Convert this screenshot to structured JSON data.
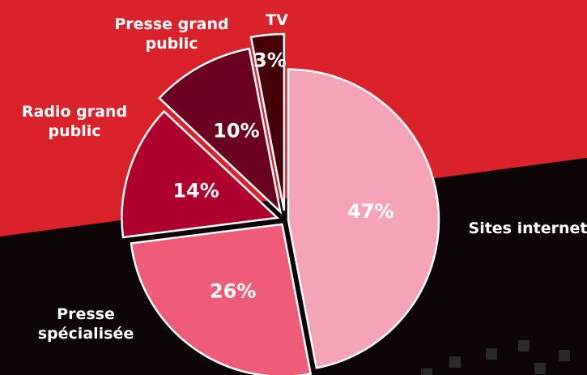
{
  "chart_data": {
    "type": "pie",
    "categories": [
      "Sites internet",
      "Presse spécialisée",
      "Radio grand public",
      "Presse grand public",
      "TV"
    ],
    "values": [
      47,
      26,
      14,
      10,
      3
    ],
    "value_labels": [
      "47%",
      "26%",
      "14%",
      "10%",
      "3%"
    ],
    "colors": [
      "#f5a3b6",
      "#ee5c78",
      "#b0002e",
      "#6b0020",
      "#450008"
    ]
  }
}
